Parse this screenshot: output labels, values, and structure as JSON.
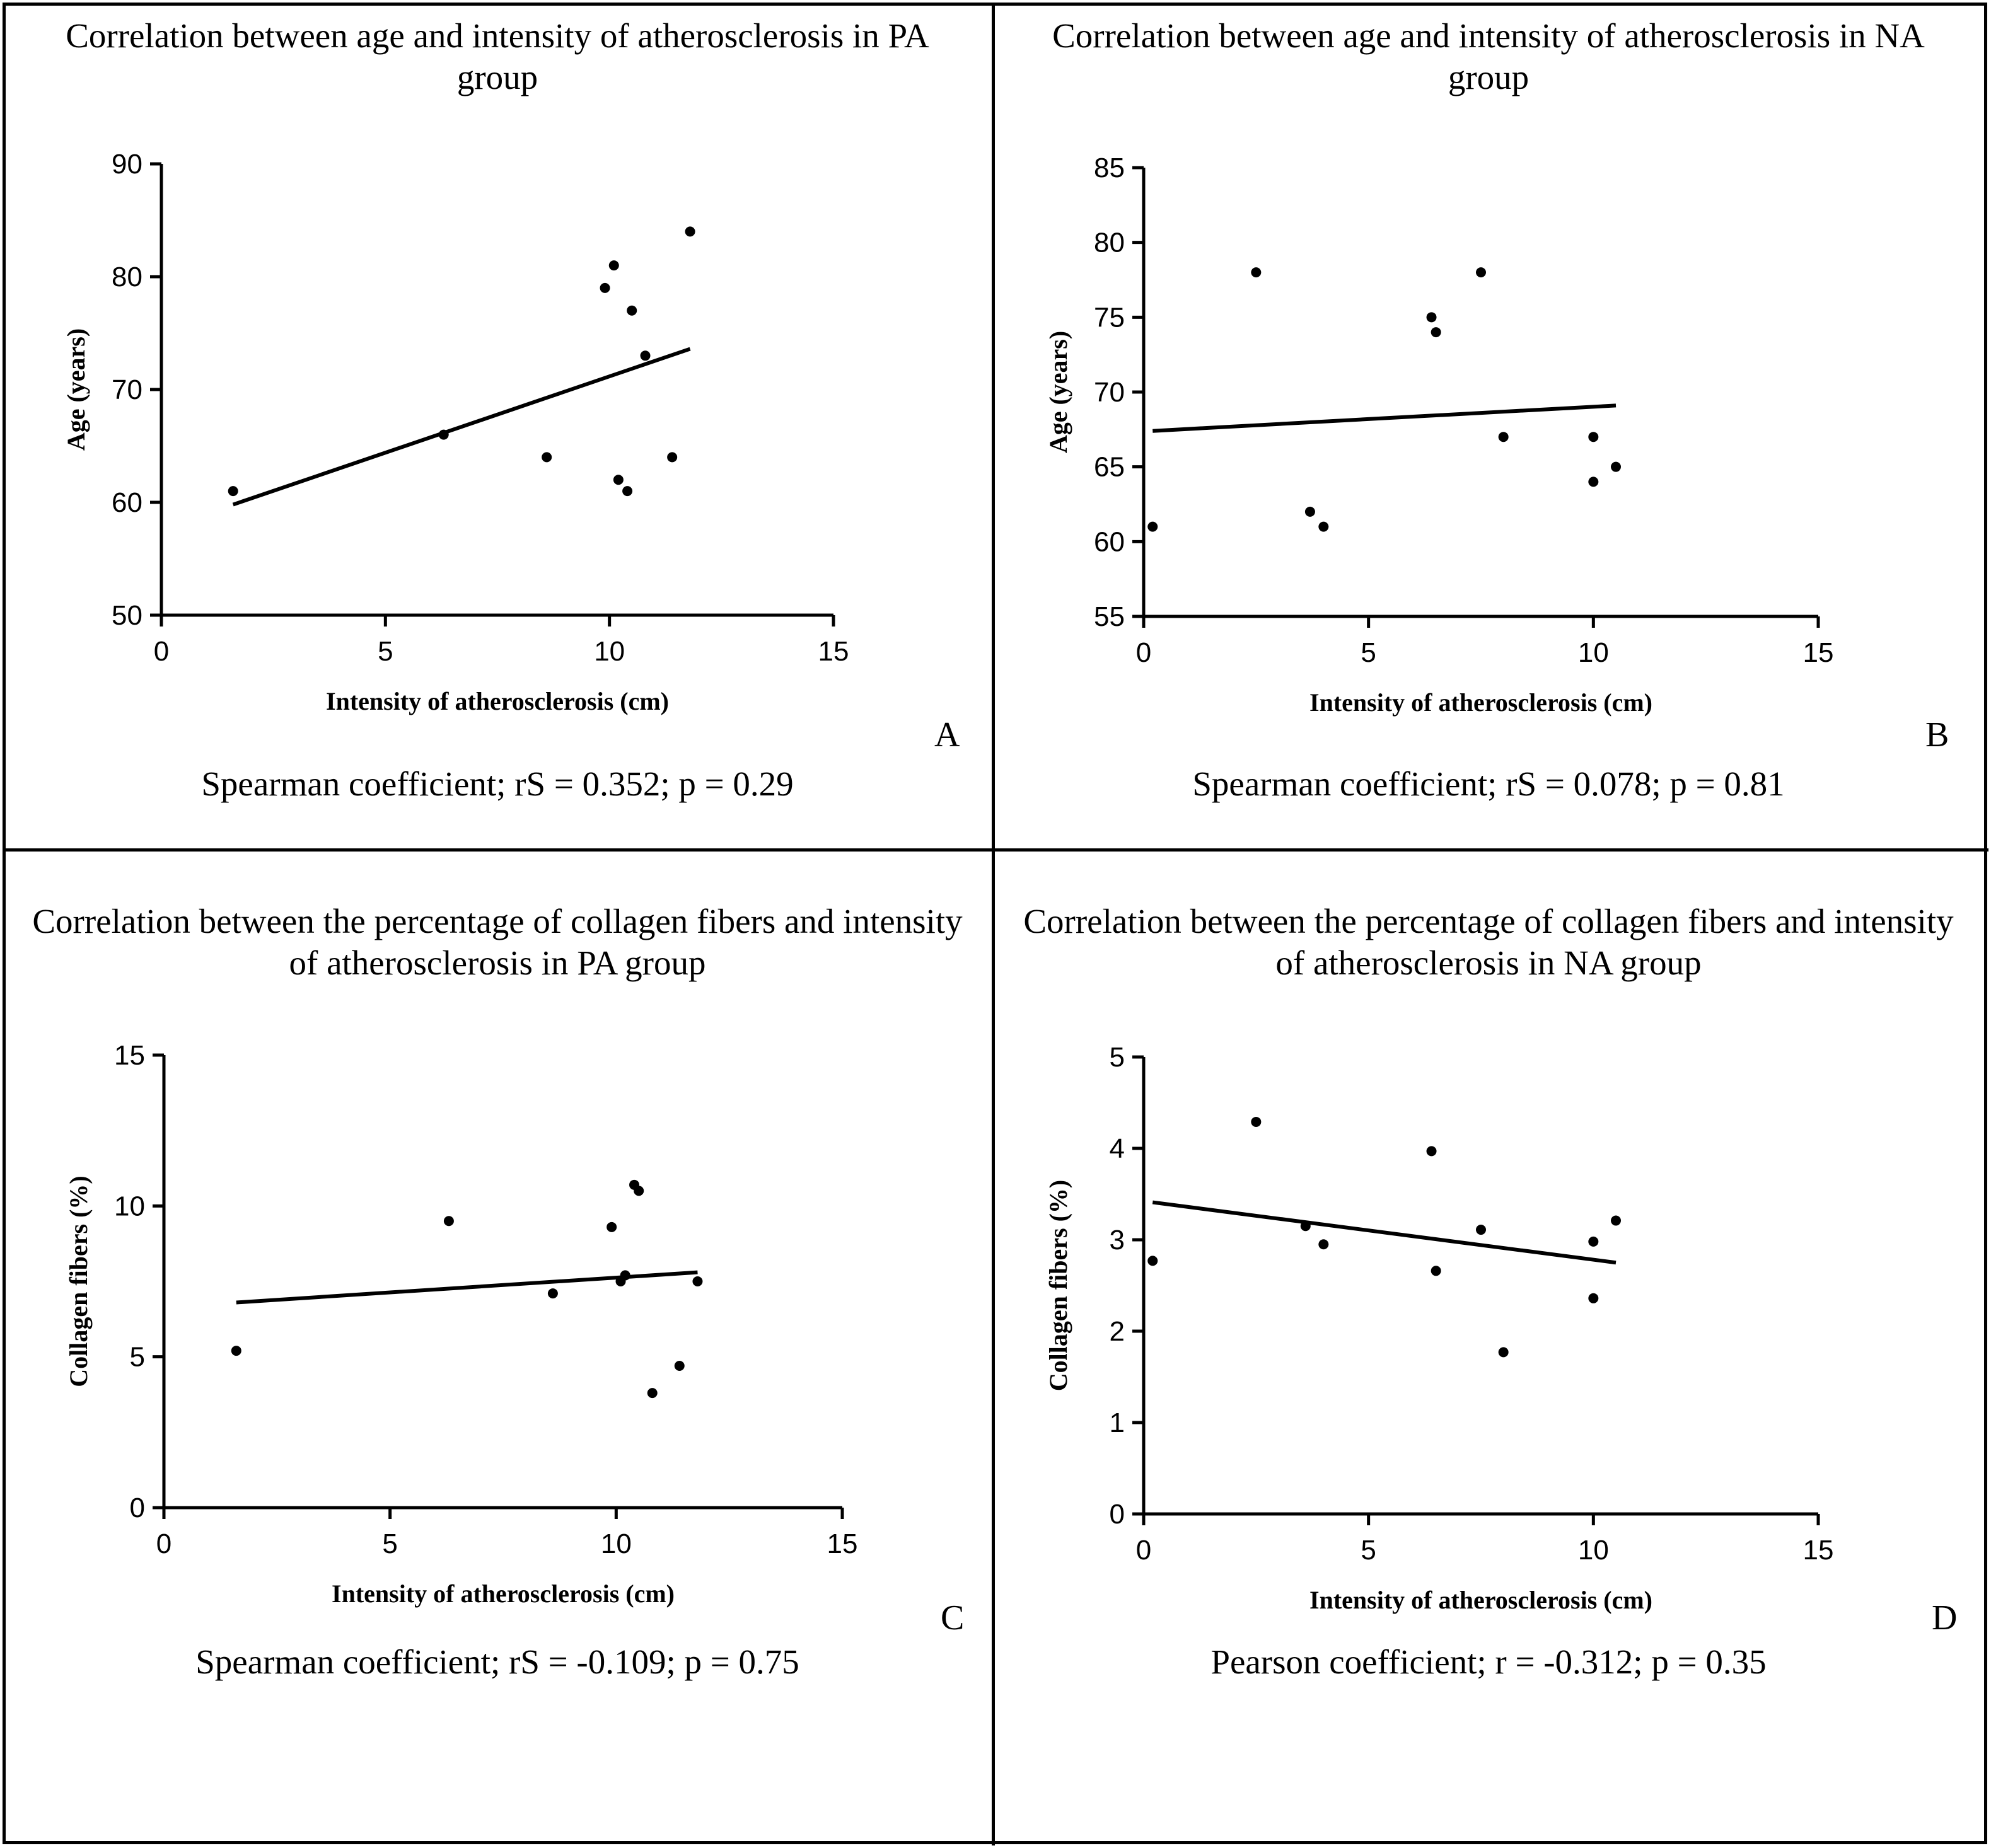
{
  "chart_data": [
    {
      "type": "scatter",
      "title": "Correlation between age and intensity of atherosclerosis in PA group",
      "xlabel": "Intensity of atherosclerosis (cm)",
      "ylabel": "Age (years)",
      "xlim": [
        0,
        15
      ],
      "ylim": [
        50,
        90
      ],
      "xticks": [
        0,
        5,
        10,
        15
      ],
      "yticks": [
        50,
        60,
        70,
        80,
        90
      ],
      "x": [
        1.6,
        6.3,
        8.6,
        9.9,
        10.1,
        10.2,
        10.4,
        10.5,
        10.8,
        11.4,
        11.8
      ],
      "y": [
        61,
        66,
        64,
        79,
        81,
        62,
        61,
        77,
        73,
        64,
        84
      ],
      "fit_line": {
        "x": [
          1.6,
          11.8
        ],
        "y": [
          59.8,
          73.6
        ]
      },
      "panel_letter": "A",
      "coefficient_text": "Spearman coefficient; rS = 0.352; p = 0.29"
    },
    {
      "type": "scatter",
      "title": "Correlation between age and intensity of atherosclerosis in NA group",
      "xlabel": "Intensity of atherosclerosis (cm)",
      "ylabel": "Age (years)",
      "xlim": [
        0,
        15
      ],
      "ylim": [
        55,
        85
      ],
      "xticks": [
        0,
        5,
        10,
        15
      ],
      "yticks": [
        55,
        60,
        65,
        70,
        75,
        80,
        85
      ],
      "x": [
        0.2,
        2.5,
        3.7,
        4.0,
        6.4,
        6.5,
        7.5,
        8.0,
        10.0,
        10.0,
        10.5
      ],
      "y": [
        61,
        78,
        62,
        61,
        75,
        74,
        78,
        67,
        67,
        64,
        65
      ],
      "fit_line": {
        "x": [
          0.2,
          10.5
        ],
        "y": [
          67.4,
          69.1
        ]
      },
      "panel_letter": "B",
      "coefficient_text": "Spearman coefficient; rS = 0.078; p = 0.81"
    },
    {
      "type": "scatter",
      "title": "Correlation between the percentage of collagen fibers and intensity of atherosclerosis in PA group",
      "xlabel": "Intensity of atherosclerosis (cm)",
      "ylabel": "Collagen fibers (%)",
      "xlim": [
        0,
        15
      ],
      "ylim": [
        0,
        15
      ],
      "xticks": [
        0,
        5,
        10,
        15
      ],
      "yticks": [
        0,
        5,
        10,
        15
      ],
      "x": [
        1.6,
        6.3,
        8.6,
        9.9,
        10.1,
        10.2,
        10.4,
        10.5,
        10.8,
        11.4,
        11.8
      ],
      "y": [
        5.2,
        9.5,
        7.1,
        9.3,
        7.5,
        7.7,
        10.7,
        10.5,
        3.8,
        4.7,
        7.5
      ],
      "fit_line": {
        "x": [
          1.6,
          11.8
        ],
        "y": [
          6.8,
          7.8
        ]
      },
      "panel_letter": "C",
      "coefficient_text": "Spearman coefficient; rS = -0.109; p = 0.75"
    },
    {
      "type": "scatter",
      "title": "Correlation between the percentage of collagen fibers and intensity of atherosclerosis in NA group",
      "xlabel": "Intensity of atherosclerosis (cm)",
      "ylabel": "Collagen fibers (%)",
      "xlim": [
        0,
        15
      ],
      "ylim": [
        0,
        5
      ],
      "xticks": [
        0,
        5,
        10,
        15
      ],
      "yticks": [
        0,
        1,
        2,
        3,
        4,
        5
      ],
      "x": [
        0.2,
        2.5,
        3.6,
        4.0,
        6.4,
        6.5,
        7.5,
        8.0,
        10.0,
        10.0,
        10.5
      ],
      "y": [
        2.77,
        4.29,
        3.15,
        2.95,
        3.97,
        2.66,
        3.11,
        1.77,
        2.98,
        2.36,
        3.21
      ],
      "fit_line": {
        "x": [
          0.2,
          10.5
        ],
        "y": [
          3.41,
          2.75
        ]
      },
      "panel_letter": "D",
      "coefficient_text": "Pearson coefficient; r = -0.312; p = 0.35"
    }
  ]
}
